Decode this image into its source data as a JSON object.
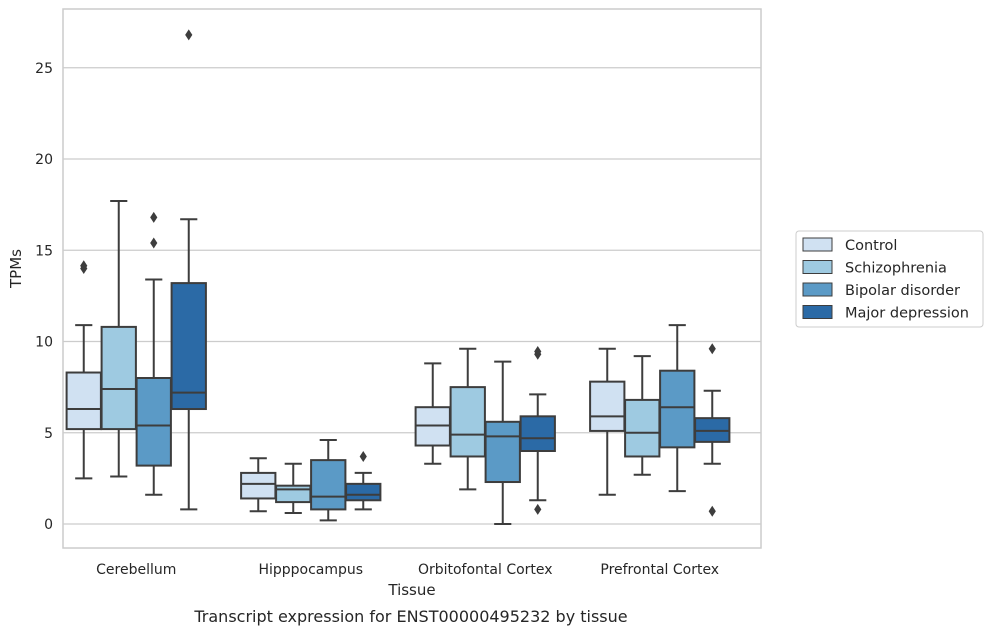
{
  "chart_data": {
    "type": "boxplot",
    "title": "",
    "caption": "Transcript expression for ENST00000495232 by tissue",
    "xlabel": "Tissue",
    "ylabel": "TPMs",
    "ylim": [
      -1.3,
      28.2
    ],
    "yticks": [
      0,
      5,
      10,
      15,
      20,
      25
    ],
    "grid": "horizontal",
    "legend_position": "right",
    "categories": [
      "Cerebellum",
      "Hipppocampus",
      "Orbitofontal Cortex",
      "Prefrontal Cortex"
    ],
    "series": [
      {
        "name": "Control",
        "color": "#d0e1f2",
        "boxes": [
          {
            "whislo": 2.5,
            "q1": 5.2,
            "med": 6.3,
            "q3": 8.3,
            "whishi": 10.9,
            "fliers": [
              14.0,
              14.15
            ]
          },
          {
            "whislo": 0.7,
            "q1": 1.4,
            "med": 2.2,
            "q3": 2.8,
            "whishi": 3.6,
            "fliers": []
          },
          {
            "whislo": 3.3,
            "q1": 4.3,
            "med": 5.4,
            "q3": 6.4,
            "whishi": 8.8,
            "fliers": []
          },
          {
            "whislo": 1.6,
            "q1": 5.1,
            "med": 5.9,
            "q3": 7.8,
            "whishi": 9.6,
            "fliers": []
          }
        ]
      },
      {
        "name": "Schizophrenia",
        "color": "#9ecae1",
        "boxes": [
          {
            "whislo": 2.6,
            "q1": 5.2,
            "med": 7.4,
            "q3": 10.8,
            "whishi": 17.7,
            "fliers": []
          },
          {
            "whislo": 0.6,
            "q1": 1.2,
            "med": 1.9,
            "q3": 2.1,
            "whishi": 3.3,
            "fliers": []
          },
          {
            "whislo": 1.9,
            "q1": 3.7,
            "med": 4.9,
            "q3": 7.5,
            "whishi": 9.6,
            "fliers": []
          },
          {
            "whislo": 2.7,
            "q1": 3.7,
            "med": 5.0,
            "q3": 6.8,
            "whishi": 9.2,
            "fliers": []
          }
        ]
      },
      {
        "name": "Bipolar disorder",
        "color": "#5b9ac6",
        "boxes": [
          {
            "whislo": 1.6,
            "q1": 3.2,
            "med": 5.4,
            "q3": 8.0,
            "whishi": 13.4,
            "fliers": [
              15.4,
              16.8
            ]
          },
          {
            "whislo": 0.2,
            "q1": 0.8,
            "med": 1.5,
            "q3": 3.5,
            "whishi": 4.6,
            "fliers": []
          },
          {
            "whislo": 0.0,
            "q1": 2.3,
            "med": 4.8,
            "q3": 5.6,
            "whishi": 8.9,
            "fliers": []
          },
          {
            "whislo": 1.8,
            "q1": 4.2,
            "med": 6.4,
            "q3": 8.4,
            "whishi": 10.9,
            "fliers": []
          }
        ]
      },
      {
        "name": "Major depression",
        "color": "#2b6aa6",
        "boxes": [
          {
            "whislo": 0.8,
            "q1": 6.3,
            "med": 7.2,
            "q3": 13.2,
            "whishi": 16.7,
            "fliers": [
              26.8
            ]
          },
          {
            "whislo": 0.8,
            "q1": 1.3,
            "med": 1.6,
            "q3": 2.2,
            "whishi": 2.8,
            "fliers": [
              3.7
            ]
          },
          {
            "whislo": 1.3,
            "q1": 4.0,
            "med": 4.7,
            "q3": 5.9,
            "whishi": 7.1,
            "fliers": [
              0.8,
              9.3,
              9.45
            ]
          },
          {
            "whislo": 3.3,
            "q1": 4.5,
            "med": 5.1,
            "q3": 5.8,
            "whishi": 7.3,
            "fliers": [
              0.7,
              9.6
            ]
          }
        ]
      }
    ]
  }
}
